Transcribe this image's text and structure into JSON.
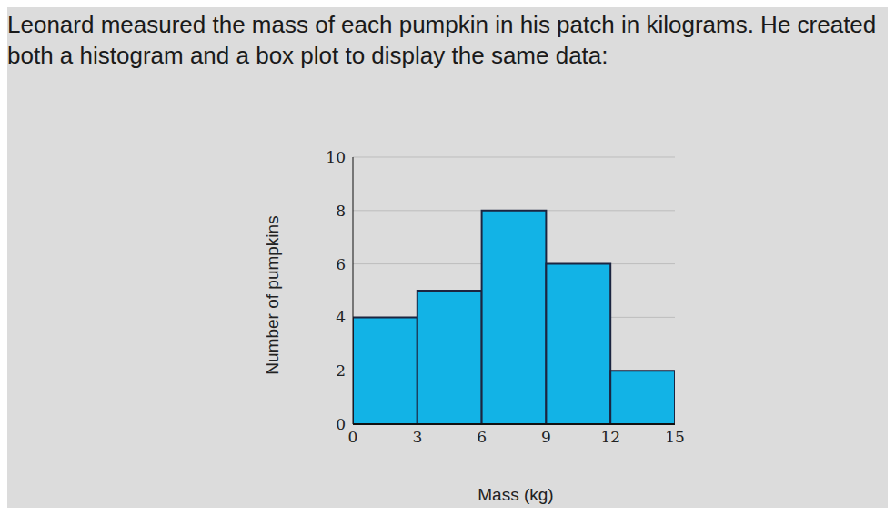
{
  "chart_data": {
    "type": "histogram",
    "title": "Leonard measured the mass of each pumpkin in his patch in kilograms. He created both a histogram and a box plot to display the same data:",
    "bins": [
      0,
      3,
      6,
      9,
      12,
      15
    ],
    "values": [
      4,
      5,
      8,
      6,
      2
    ],
    "color": "#12b3e6",
    "x_label": "Mass (kg)",
    "y_label": "Number of pumpkins",
    "xlim": [
      0,
      15
    ],
    "xticks": [
      0,
      3,
      6,
      9,
      12,
      15
    ],
    "ylim": [
      0,
      10
    ],
    "yticks": [
      0,
      2,
      4,
      6,
      8,
      10
    ],
    "grid": true
  }
}
